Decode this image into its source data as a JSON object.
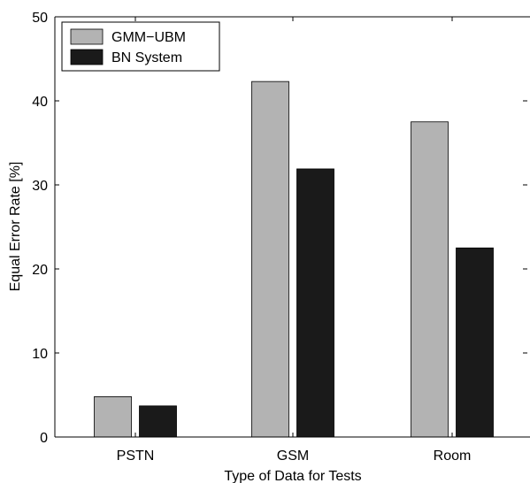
{
  "chart_data": {
    "type": "bar",
    "title": "",
    "xlabel": "Type of Data for Tests",
    "ylabel": "Equal Error Rate [%]",
    "categories": [
      "PSTN",
      "GSM",
      "Room"
    ],
    "series": [
      {
        "name": "GMM−UBM",
        "values": [
          4.8,
          42.3,
          37.5
        ],
        "color": "#b3b3b3"
      },
      {
        "name": "BN System",
        "values": [
          3.7,
          31.9,
          22.5
        ],
        "color": "#1a1a1a"
      }
    ],
    "ylim": [
      0,
      50
    ],
    "yticks": [
      0,
      10,
      20,
      30,
      40,
      50
    ],
    "grid": false,
    "legend_position": "top-left"
  }
}
